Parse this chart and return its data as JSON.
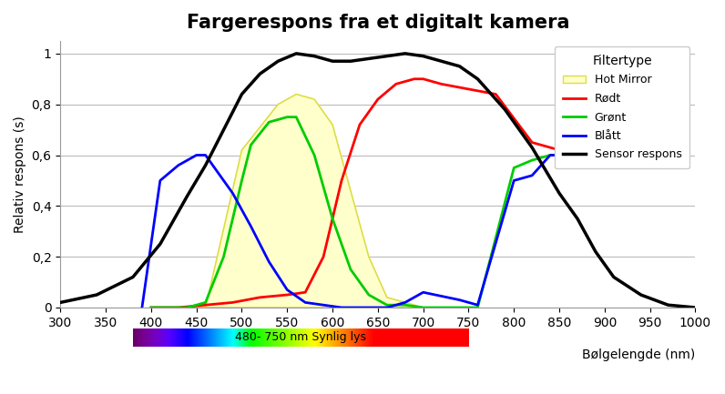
{
  "title": "Fargerespons fra et digitalt kamera",
  "xlabel": "Bølgelengde (nm)",
  "ylabel": "Relativ respons (s)",
  "xlim": [
    300,
    1000
  ],
  "ylim": [
    0,
    1.05
  ],
  "xticks": [
    300,
    350,
    400,
    450,
    500,
    550,
    600,
    650,
    700,
    750,
    800,
    850,
    900,
    950,
    1000
  ],
  "yticks": [
    0,
    0.2,
    0.4,
    0.6,
    0.8,
    1
  ],
  "ytick_labels": [
    "0",
    "0,2",
    "0,4",
    "0,6",
    "0,8",
    "1"
  ],
  "sensor_x": [
    300,
    340,
    380,
    410,
    440,
    460,
    480,
    500,
    520,
    540,
    560,
    580,
    600,
    620,
    640,
    660,
    680,
    700,
    720,
    740,
    760,
    790,
    820,
    850,
    870,
    890,
    910,
    940,
    970,
    1000
  ],
  "sensor_y": [
    0.02,
    0.05,
    0.12,
    0.25,
    0.44,
    0.56,
    0.7,
    0.84,
    0.92,
    0.97,
    1.0,
    0.99,
    0.97,
    0.97,
    0.98,
    0.99,
    1.0,
    0.99,
    0.97,
    0.95,
    0.9,
    0.78,
    0.63,
    0.45,
    0.35,
    0.22,
    0.12,
    0.05,
    0.01,
    0.0
  ],
  "red_x": [
    400,
    430,
    460,
    490,
    520,
    550,
    570,
    590,
    610,
    630,
    650,
    670,
    690,
    700,
    720,
    750,
    780,
    820,
    850,
    860
  ],
  "red_y": [
    0.0,
    0.0,
    0.01,
    0.02,
    0.04,
    0.05,
    0.06,
    0.2,
    0.5,
    0.72,
    0.82,
    0.88,
    0.9,
    0.9,
    0.88,
    0.86,
    0.84,
    0.65,
    0.62,
    0.6
  ],
  "green_x": [
    400,
    420,
    440,
    460,
    480,
    500,
    510,
    530,
    550,
    560,
    580,
    600,
    620,
    640,
    660,
    680,
    700,
    750,
    760,
    800,
    820,
    840,
    860
  ],
  "green_y": [
    0.0,
    0.0,
    0.0,
    0.02,
    0.2,
    0.5,
    0.64,
    0.73,
    0.75,
    0.75,
    0.6,
    0.35,
    0.15,
    0.05,
    0.01,
    0.01,
    0.0,
    0.0,
    0.0,
    0.55,
    0.58,
    0.6,
    0.6
  ],
  "blue_x": [
    390,
    410,
    430,
    450,
    460,
    490,
    510,
    530,
    550,
    570,
    590,
    610,
    640,
    660,
    680,
    700,
    740,
    760,
    800,
    820,
    840,
    860
  ],
  "blue_y": [
    0.0,
    0.5,
    0.56,
    0.6,
    0.6,
    0.45,
    0.32,
    0.18,
    0.07,
    0.02,
    0.01,
    0.0,
    0.0,
    0.0,
    0.02,
    0.06,
    0.03,
    0.01,
    0.5,
    0.52,
    0.6,
    0.6
  ],
  "hot_mirror_x": [
    400,
    460,
    500,
    540,
    560,
    580,
    600,
    640,
    660,
    700,
    750
  ],
  "hot_mirror_y": [
    0.0,
    0.0,
    0.62,
    0.8,
    0.84,
    0.82,
    0.72,
    0.2,
    0.04,
    0.0,
    0.0
  ],
  "spectrum_label": "480- 750 nm Synlig lys",
  "legend_title": "Filtertype",
  "legend_entries": [
    "Hot Mirror",
    "Rødt",
    "Grønt",
    "Blått",
    "Sensor respons"
  ],
  "background_color": "#ffffff",
  "sensor_color": "#000000",
  "red_color": "#ff0000",
  "green_color": "#00cc00",
  "blue_color": "#0000ff",
  "hot_mirror_fill": "#ffffcc",
  "hot_mirror_edge": "#dddd44"
}
